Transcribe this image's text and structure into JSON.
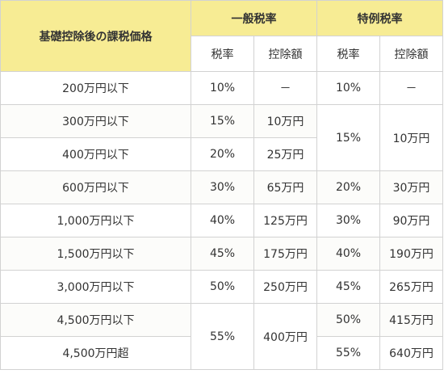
{
  "header": {
    "price_label": "基礎控除後の課税価格",
    "general_label": "一般税率",
    "special_label": "特例税率",
    "general_rate": "税率",
    "general_deduction": "控除額",
    "special_rate": "税率",
    "special_deduction": "控除額"
  },
  "rows": [
    {
      "price": "200万円以下",
      "g_rate": "10%",
      "g_ded": "－",
      "s_rate": "10%",
      "s_ded": "－"
    },
    {
      "price": "300万円以下",
      "g_rate": "15%",
      "g_ded": "10万円",
      "s_rate": "15%",
      "s_ded": "10万円"
    },
    {
      "price": "400万円以下",
      "g_rate": "20%",
      "g_ded": "25万円"
    },
    {
      "price": "600万円以下",
      "g_rate": "30%",
      "g_ded": "65万円",
      "s_rate": "20%",
      "s_ded": "30万円"
    },
    {
      "price": "1,000万円以下",
      "g_rate": "40%",
      "g_ded": "125万円",
      "s_rate": "30%",
      "s_ded": "90万円"
    },
    {
      "price": "1,500万円以下",
      "g_rate": "45%",
      "g_ded": "175万円",
      "s_rate": "40%",
      "s_ded": "190万円"
    },
    {
      "price": "3,000万円以下",
      "g_rate": "50%",
      "g_ded": "250万円",
      "s_rate": "45%",
      "s_ded": "265万円"
    },
    {
      "price": "4,500万円以下",
      "g_rate": "55%",
      "g_ded": "400万円",
      "s_rate": "50%",
      "s_ded": "415万円"
    },
    {
      "price": "4,500万円超",
      "s_rate": "55%",
      "s_ded": "640万円"
    }
  ]
}
